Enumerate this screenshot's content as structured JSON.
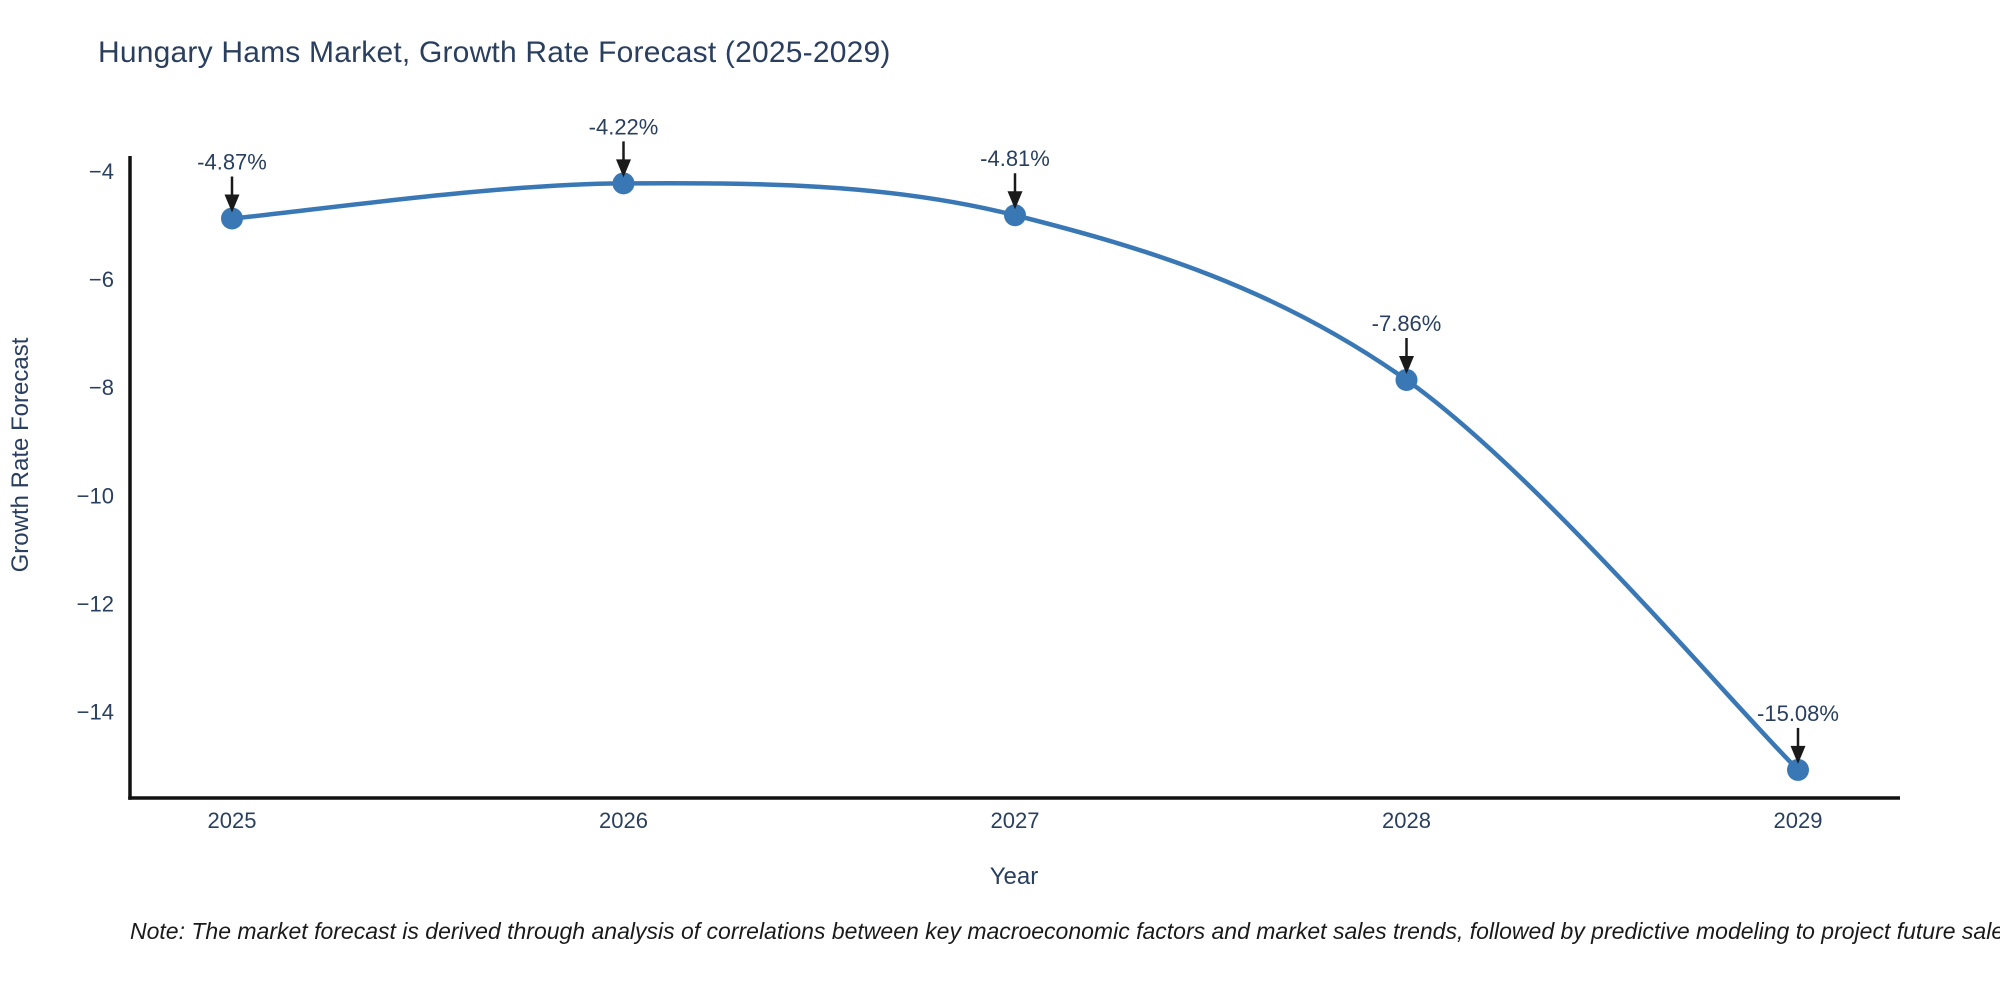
{
  "chart_data": {
    "type": "line",
    "title": "Hungary Hams Market, Growth Rate Forecast (2025-2029)",
    "xlabel": "Year",
    "ylabel": "Growth Rate Forecast",
    "categories": [
      "2025",
      "2026",
      "2027",
      "2028",
      "2029"
    ],
    "series": [
      {
        "name": "Growth Rate Forecast",
        "values": [
          -4.87,
          -4.22,
          -4.81,
          -7.86,
          -15.08
        ],
        "point_labels": [
          "-4.87%",
          "-4.22%",
          "-4.81%",
          "-7.86%",
          "-15.08%"
        ]
      }
    ],
    "y_ticks": [
      -4,
      -6,
      -8,
      -10,
      -12,
      -14
    ],
    "y_tick_labels": [
      "−4",
      "−6",
      "−8",
      "−10",
      "−12",
      "−14"
    ],
    "ylim": [
      -15.6,
      -3.75
    ],
    "grid": false,
    "legend": "none",
    "line_color": "#3a78b5",
    "marker_color": "#3a78b5",
    "axis_line_color": "#111111",
    "annotation_arrow_color": "#1a1a1a",
    "text_color": "#2a3f5f"
  },
  "footnote": {
    "text": "Note: The market forecast is derived through analysis of correlations between key macroeconomic factors and market sales trends, followed by predictive modeling to project future sales"
  }
}
